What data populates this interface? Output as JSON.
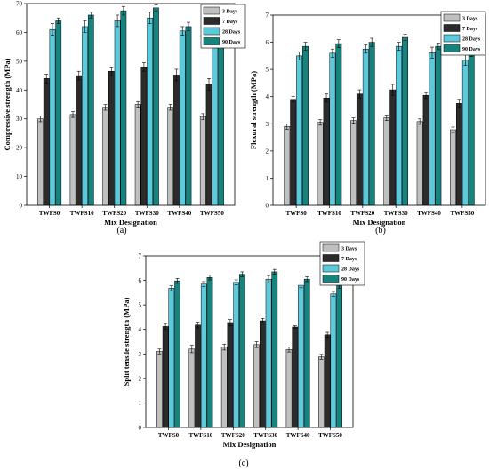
{
  "colors": {
    "3 Days": "#c0c0c0",
    "7 Days": "#2b2b2b",
    "28 Days": "#5ccadb",
    "90 Days": "#16837f"
  },
  "chart_data": [
    {
      "type": "bar",
      "caption": "(a)",
      "xlabel": "Mix Designation",
      "ylabel": "Compressive strength (MPa)",
      "ylim": [
        0,
        70
      ],
      "yticks": [
        0,
        10,
        20,
        30,
        40,
        50,
        60,
        70
      ],
      "legend_position": "top-right",
      "categories": [
        "TWFS0",
        "TWFS10",
        "TWFS20",
        "TWFS30",
        "TWFS40",
        "TWFS50"
      ],
      "series": [
        {
          "name": "3 Days",
          "values": [
            30,
            31.5,
            34,
            35,
            34,
            30.8
          ],
          "errors": [
            1,
            1,
            1,
            1,
            1,
            1
          ]
        },
        {
          "name": "7 Days",
          "values": [
            44,
            45,
            46.5,
            48,
            45.2,
            42
          ],
          "errors": [
            1.5,
            1.5,
            1.5,
            1.5,
            2,
            2
          ]
        },
        {
          "name": "28 Days",
          "values": [
            61,
            62,
            64,
            65,
            60.5,
            58
          ],
          "errors": [
            2,
            2,
            2,
            2,
            1.5,
            1.5
          ]
        },
        {
          "name": "90 Days",
          "values": [
            64,
            66,
            67.5,
            68.5,
            62,
            59.5
          ],
          "errors": [
            1,
            1,
            1.5,
            1,
            1.5,
            1.5
          ]
        }
      ]
    },
    {
      "type": "bar",
      "caption": "(b)",
      "xlabel": "Mix Designation",
      "ylabel": "Flexural strength (MPa)",
      "ylim": [
        0,
        7
      ],
      "yticks": [
        0,
        1,
        2,
        3,
        4,
        5,
        6,
        7
      ],
      "legend_position": "top-right",
      "categories": [
        "TWFS0",
        "TWFS10",
        "TWFS20",
        "TWFS30",
        "TWFS40",
        "TWFS50"
      ],
      "series": [
        {
          "name": "3 Days",
          "values": [
            2.9,
            3.05,
            3.12,
            3.22,
            3.08,
            2.78
          ],
          "errors": [
            0.1,
            0.1,
            0.1,
            0.1,
            0.1,
            0.1
          ]
        },
        {
          "name": "7 Days",
          "values": [
            3.9,
            3.95,
            4.1,
            4.25,
            4.05,
            3.75
          ],
          "errors": [
            0.1,
            0.15,
            0.15,
            0.2,
            0.1,
            0.15
          ]
        },
        {
          "name": "28 Days",
          "values": [
            5.5,
            5.6,
            5.75,
            5.85,
            5.62,
            5.35
          ],
          "errors": [
            0.15,
            0.15,
            0.15,
            0.15,
            0.2,
            0.2
          ]
        },
        {
          "name": "90 Days",
          "values": [
            5.85,
            5.95,
            6.0,
            6.18,
            5.85,
            5.6
          ],
          "errors": [
            0.15,
            0.15,
            0.15,
            0.12,
            0.12,
            0.12
          ]
        }
      ]
    },
    {
      "type": "bar",
      "caption": "(c)",
      "xlabel": "Mix Designation",
      "ylabel": "Split tensile strength (MPa)",
      "ylim": [
        0,
        7
      ],
      "yticks": [
        0,
        1,
        2,
        3,
        4,
        5,
        6,
        7
      ],
      "legend_position": "top-right",
      "categories": [
        "TWFS0",
        "TWFS10",
        "TWFS20",
        "TWFS30",
        "TWFS40",
        "TWFS50"
      ],
      "series": [
        {
          "name": "3 Days",
          "values": [
            3.1,
            3.2,
            3.28,
            3.38,
            3.18,
            2.88
          ],
          "errors": [
            0.1,
            0.15,
            0.12,
            0.12,
            0.1,
            0.1
          ]
        },
        {
          "name": "7 Days",
          "values": [
            4.12,
            4.18,
            4.28,
            4.35,
            4.1,
            3.78
          ],
          "errors": [
            0.12,
            0.12,
            0.12,
            0.1,
            0.05,
            0.1
          ]
        },
        {
          "name": "28 Days",
          "values": [
            5.68,
            5.85,
            5.92,
            6.05,
            5.8,
            5.45
          ],
          "errors": [
            0.1,
            0.1,
            0.1,
            0.15,
            0.1,
            0.1
          ]
        },
        {
          "name": "90 Days",
          "values": [
            5.98,
            6.12,
            6.25,
            6.35,
            6.05,
            5.78
          ],
          "errors": [
            0.1,
            0.1,
            0.1,
            0.1,
            0.1,
            0.1
          ]
        }
      ]
    }
  ]
}
